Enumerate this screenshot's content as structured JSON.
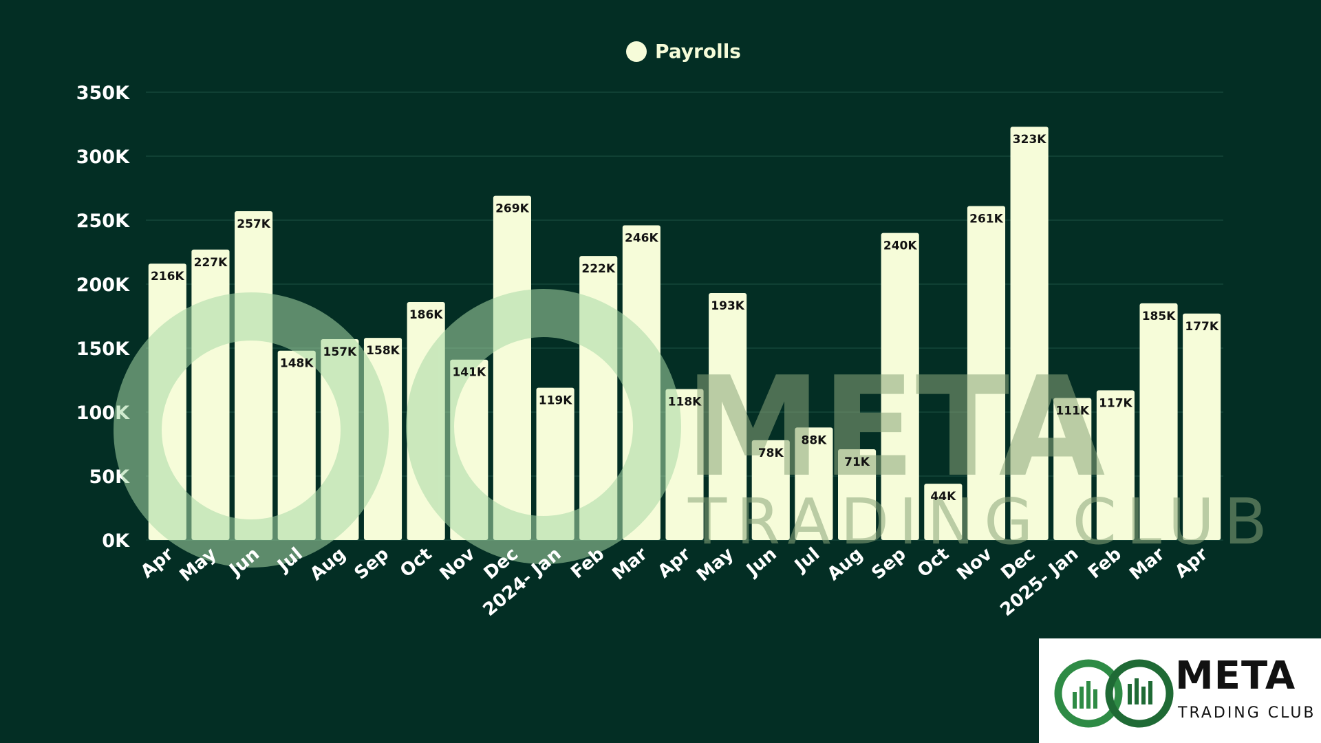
{
  "legend": {
    "label": "Payrolls",
    "color": "#f6fcd9"
  },
  "colors": {
    "background": "#032e24",
    "bar": "#f6fcd9",
    "gridline": "#1e5244",
    "text": "#ffffff",
    "bar_label": "#111111",
    "watermark": "#a8d9a6"
  },
  "watermark": {
    "title": "META",
    "subtitle": "TRADING CLUB"
  },
  "logo": {
    "title": "META",
    "subtitle": "TRADING CLUB",
    "icon": "meta-infinity-chart-icon"
  },
  "chart_data": {
    "type": "bar",
    "ylim": [
      0,
      350
    ],
    "yticks": [
      "0K",
      "50K",
      "100K",
      "150K",
      "200K",
      "250K",
      "300K",
      "350K"
    ],
    "grid": true,
    "legend_position": "top-center",
    "categories": [
      "Apr",
      "May",
      "Jun",
      "Jul",
      "Aug",
      "Sep",
      "Oct",
      "Nov",
      "Dec",
      "2024- Jan",
      "Feb",
      "Mar",
      "Apr",
      "May",
      "Jun",
      "Jul",
      "Aug",
      "Sep",
      "Oct",
      "Nov",
      "Dec",
      "2025- Jan",
      "Feb",
      "Mar",
      "Apr"
    ],
    "series": [
      {
        "name": "Payrolls",
        "values": [
          216,
          227,
          257,
          148,
          157,
          158,
          186,
          141,
          269,
          119,
          222,
          246,
          118,
          193,
          78,
          88,
          71,
          240,
          44,
          261,
          323,
          111,
          117,
          185,
          177
        ],
        "labels": [
          "216K",
          "227K",
          "257K",
          "148K",
          "157K",
          "158K",
          "186K",
          "141K",
          "269K",
          "119K",
          "222K",
          "246K",
          "118K",
          "193K",
          "78K",
          "88K",
          "71K",
          "240K",
          "44K",
          "261K",
          "323K",
          "111K",
          "117K",
          "185K",
          "177K"
        ]
      }
    ]
  }
}
